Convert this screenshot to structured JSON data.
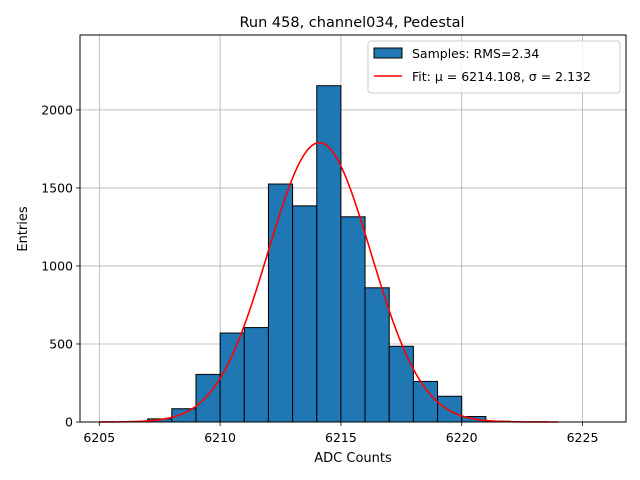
{
  "chart_data": {
    "type": "histogram",
    "title": "Run 458, channel034, Pedestal",
    "xlabel": "ADC Counts",
    "ylabel": "Entries",
    "xlim": [
      6204.2,
      6226.8
    ],
    "ylim": [
      0,
      2480
    ],
    "xticks": [
      6205,
      6210,
      6215,
      6220,
      6225
    ],
    "yticks": [
      0,
      500,
      1000,
      1500,
      2000
    ],
    "grid": true,
    "bins": {
      "edges": [
        6207,
        6208,
        6209,
        6210,
        6211,
        6212,
        6213,
        6214,
        6215,
        6216,
        6217,
        6218,
        6219,
        6220,
        6221,
        6222
      ],
      "counts": [
        20,
        85,
        305,
        570,
        605,
        1525,
        1385,
        2155,
        1315,
        860,
        485,
        260,
        165,
        35,
        5
      ],
      "color": "#1f77b4",
      "edgecolor": "#000000"
    },
    "fit": {
      "type": "gaussian",
      "mu": 6214.108,
      "sigma": 2.132,
      "amplitude": 1790,
      "x_range": [
        6205,
        6224
      ],
      "color": "#ff0000"
    },
    "legend": {
      "position": "top-right",
      "entries": [
        {
          "label": "Samples: RMS=2.34",
          "kind": "patch"
        },
        {
          "label": "Fit: μ = 6214.108, σ = 2.132",
          "kind": "line"
        }
      ]
    }
  }
}
